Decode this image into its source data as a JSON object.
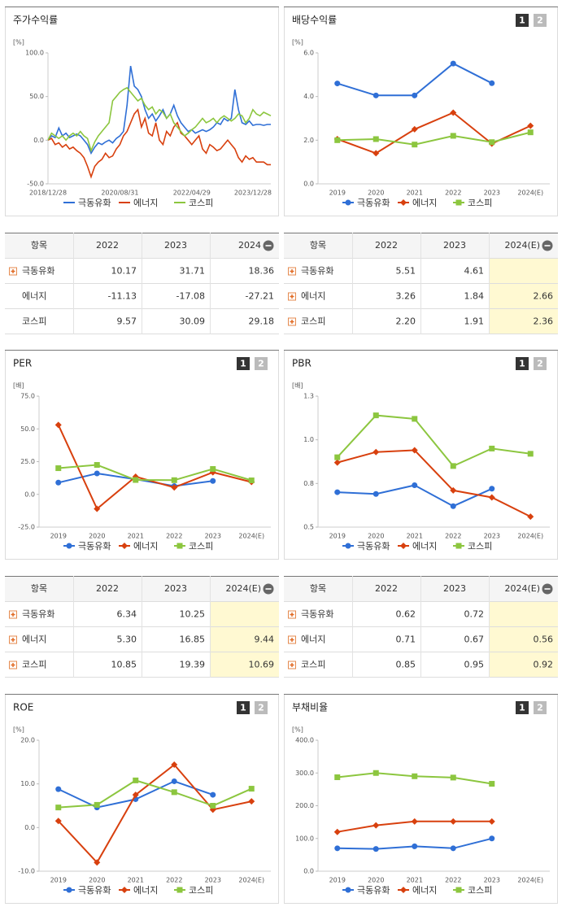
{
  "chart_data": [
    {
      "type": "time-line",
      "title": "주가수익률",
      "yunit": "[%]",
      "categories": [
        "2018/12/28",
        null,
        null,
        null,
        null,
        null,
        null,
        null,
        null,
        null,
        null,
        null,
        null,
        null,
        null,
        null,
        null,
        null,
        null,
        null,
        "2020/08/31",
        null,
        null,
        null,
        null,
        null,
        null,
        null,
        null,
        null,
        null,
        null,
        null,
        null,
        null,
        null,
        null,
        null,
        null,
        null,
        "2022/04/29",
        null,
        null,
        null,
        null,
        null,
        null,
        null,
        null,
        null,
        null,
        null,
        null,
        null,
        null,
        null,
        null,
        "2023/12/28",
        null,
        null,
        null,
        null,
        null
      ],
      "ylim": [
        -50,
        100
      ],
      "yticks": [
        {
          "value": -50,
          "label": "-50.0"
        },
        {
          "value": 0,
          "label": "0.0"
        },
        {
          "value": 50,
          "label": "50.0"
        },
        {
          "value": 100,
          "label": "100.0"
        }
      ],
      "series": [
        {
          "name": "극동유화",
          "color": "#2f6fd6",
          "values": [
            0,
            5,
            3,
            14,
            5,
            8,
            3,
            5,
            7,
            5,
            0,
            -5,
            -15,
            -8,
            -3,
            -5,
            -2,
            0,
            -3,
            2,
            5,
            10,
            40,
            85,
            62,
            58,
            50,
            35,
            25,
            30,
            22,
            28,
            35,
            25,
            30,
            40,
            28,
            20,
            15,
            10,
            12,
            8,
            10,
            12,
            10,
            12,
            15,
            20,
            18,
            25,
            22,
            25,
            58,
            35,
            20,
            18,
            22,
            17,
            18,
            18,
            17,
            18,
            18
          ]
        },
        {
          "name": "에너지",
          "color": "#d8400e",
          "values": [
            0,
            2,
            -5,
            -3,
            -8,
            -5,
            -10,
            -8,
            -12,
            -15,
            -20,
            -30,
            -42,
            -30,
            -25,
            -22,
            -15,
            -20,
            -18,
            -10,
            -5,
            5,
            10,
            20,
            30,
            35,
            15,
            25,
            8,
            5,
            20,
            0,
            -5,
            10,
            5,
            15,
            20,
            8,
            5,
            0,
            -5,
            0,
            5,
            -10,
            -15,
            -5,
            -8,
            -12,
            -10,
            -5,
            0,
            -5,
            -10,
            -20,
            -25,
            -18,
            -22,
            -20,
            -25,
            -25,
            -25,
            -28,
            -28
          ]
        },
        {
          "name": "코스피",
          "color": "#8cc63f",
          "values": [
            0,
            8,
            5,
            2,
            5,
            0,
            5,
            8,
            5,
            10,
            5,
            2,
            -12,
            -2,
            5,
            10,
            15,
            20,
            45,
            50,
            55,
            58,
            60,
            55,
            50,
            45,
            48,
            40,
            35,
            38,
            30,
            35,
            32,
            25,
            30,
            20,
            15,
            10,
            5,
            8,
            12,
            15,
            20,
            25,
            20,
            22,
            25,
            20,
            25,
            28,
            25,
            22,
            25,
            30,
            28,
            20,
            25,
            35,
            30,
            28,
            32,
            30,
            28
          ]
        }
      ]
    },
    {
      "type": "category-line",
      "title": "배당수익률",
      "yunit": "[%]",
      "buttons": [
        "1",
        "2"
      ],
      "categories": [
        "2019",
        "2020",
        "2021",
        "2022",
        "2023",
        "2024(E)"
      ],
      "ylim": [
        0,
        6
      ],
      "yticks": [
        {
          "value": 0,
          "label": "0.0"
        },
        {
          "value": 2,
          "label": "2.0"
        },
        {
          "value": 4,
          "label": "4.0"
        },
        {
          "value": 6,
          "label": "6.0"
        }
      ],
      "series": [
        {
          "name": "극동유화",
          "color": "#2f6fd6",
          "marker": "circle",
          "values": [
            4.6,
            4.05,
            4.05,
            5.51,
            4.61,
            null
          ]
        },
        {
          "name": "에너지",
          "color": "#d8400e",
          "marker": "diamond",
          "values": [
            2.05,
            1.4,
            2.5,
            3.26,
            1.84,
            2.66
          ]
        },
        {
          "name": "코스피",
          "color": "#8cc63f",
          "marker": "square",
          "values": [
            2.0,
            2.05,
            1.8,
            2.2,
            1.91,
            2.36
          ]
        }
      ]
    },
    {
      "type": "category-line",
      "title": "PER",
      "yunit": "[배]",
      "buttons": [
        "1",
        "2"
      ],
      "categories": [
        "2019",
        "2020",
        "2021",
        "2022",
        "2023",
        "2024(E)"
      ],
      "ylim": [
        -25,
        75
      ],
      "yticks": [
        {
          "value": -25,
          "label": "-25.0"
        },
        {
          "value": 0,
          "label": "0.0"
        },
        {
          "value": 25,
          "label": "25.0"
        },
        {
          "value": 50,
          "label": "50.0"
        },
        {
          "value": 75,
          "label": "75.0"
        }
      ],
      "series": [
        {
          "name": "극동유화",
          "color": "#2f6fd6",
          "marker": "circle",
          "values": [
            9,
            16,
            11.5,
            6.34,
            10.25,
            null
          ]
        },
        {
          "name": "에너지",
          "color": "#d8400e",
          "marker": "diamond",
          "values": [
            53,
            -11,
            13.5,
            5.3,
            16.85,
            9.44
          ]
        },
        {
          "name": "코스피",
          "color": "#8cc63f",
          "marker": "square",
          "values": [
            20,
            22.5,
            11,
            10.85,
            19.39,
            10.69
          ]
        }
      ]
    },
    {
      "type": "category-line",
      "title": "PBR",
      "yunit": "[배]",
      "buttons": [
        "1",
        "2"
      ],
      "categories": [
        "2019",
        "2020",
        "2021",
        "2022",
        "2023",
        "2024(E)"
      ],
      "ylim": [
        0.5,
        1.25
      ],
      "yticks": [
        {
          "value": 0.5,
          "label": "0.5"
        },
        {
          "value": 0.75,
          "label": "0.8"
        },
        {
          "value": 1.0,
          "label": "1.0"
        },
        {
          "value": 1.25,
          "label": "1.3"
        }
      ],
      "series": [
        {
          "name": "극동유화",
          "color": "#2f6fd6",
          "marker": "circle",
          "values": [
            0.7,
            0.69,
            0.74,
            0.62,
            0.72,
            null
          ]
        },
        {
          "name": "에너지",
          "color": "#d8400e",
          "marker": "diamond",
          "values": [
            0.87,
            0.93,
            0.94,
            0.71,
            0.67,
            0.56
          ]
        },
        {
          "name": "코스피",
          "color": "#8cc63f",
          "marker": "square",
          "values": [
            0.9,
            1.14,
            1.12,
            0.85,
            0.95,
            0.92
          ]
        }
      ]
    },
    {
      "type": "category-line",
      "title": "ROE",
      "yunit": "[%]",
      "buttons": [
        "1",
        "2"
      ],
      "categories": [
        "2019",
        "2020",
        "2021",
        "2022",
        "2023",
        "2024(E)"
      ],
      "ylim": [
        -10,
        20
      ],
      "yticks": [
        {
          "value": -10,
          "label": "-10.0"
        },
        {
          "value": 0,
          "label": "0.0"
        },
        {
          "value": 10,
          "label": "10.0"
        },
        {
          "value": 20,
          "label": "20.0"
        }
      ],
      "series": [
        {
          "name": "극동유화",
          "color": "#2f6fd6",
          "marker": "circle",
          "values": [
            8.8,
            4.6,
            6.5,
            10.6,
            7.5,
            null
          ]
        },
        {
          "name": "에너지",
          "color": "#d8400e",
          "marker": "diamond",
          "values": [
            1.5,
            -8,
            7.5,
            14.4,
            4.1,
            6.0
          ]
        },
        {
          "name": "코스피",
          "color": "#8cc63f",
          "marker": "square",
          "values": [
            4.6,
            5.2,
            10.8,
            8.1,
            5.0,
            8.9
          ]
        }
      ]
    },
    {
      "type": "category-line",
      "title": "부채비율",
      "yunit": "[%]",
      "buttons": [
        "1",
        "2"
      ],
      "categories": [
        "2019",
        "2020",
        "2021",
        "2022",
        "2023",
        "2024(E)"
      ],
      "ylim": [
        0,
        400
      ],
      "yticks": [
        {
          "value": 0,
          "label": "0.0"
        },
        {
          "value": 100,
          "label": "100.0"
        },
        {
          "value": 200,
          "label": "200.0"
        },
        {
          "value": 300,
          "label": "300.0"
        },
        {
          "value": 400,
          "label": "400.0"
        }
      ],
      "series": [
        {
          "name": "극동유화",
          "color": "#2f6fd6",
          "marker": "circle",
          "values": [
            70,
            68,
            76,
            70,
            100,
            null
          ]
        },
        {
          "name": "에너지",
          "color": "#d8400e",
          "marker": "diamond",
          "values": [
            120,
            140,
            152,
            152,
            152,
            null
          ]
        },
        {
          "name": "코스피",
          "color": "#8cc63f",
          "marker": "square",
          "values": [
            287,
            300,
            290,
            286,
            267,
            null
          ]
        }
      ]
    }
  ],
  "tables": [
    {
      "columns": [
        "항목",
        "2022",
        "2023",
        "2024"
      ],
      "icons": [
        true,
        false,
        false
      ],
      "highlight": false,
      "rows": [
        [
          "극동유화",
          "10.17",
          "31.71",
          "18.36"
        ],
        [
          "에너지",
          "-11.13",
          "-17.08",
          "-27.21"
        ],
        [
          "코스피",
          "9.57",
          "30.09",
          "29.18"
        ]
      ]
    },
    {
      "columns": [
        "항목",
        "2022",
        "2023",
        "2024(E)"
      ],
      "icons": [
        true,
        true,
        true
      ],
      "highlight": true,
      "rows": [
        [
          "극동유화",
          "5.51",
          "4.61"
        ],
        [
          "에너지",
          "3.26",
          "1.84",
          "2.66"
        ],
        [
          "코스피",
          "2.20",
          "1.91",
          "2.36"
        ]
      ]
    },
    {
      "columns": [
        "항목",
        "2022",
        "2023",
        "2024(E)"
      ],
      "icons": [
        true,
        true,
        true
      ],
      "highlight": true,
      "rows": [
        [
          "극동유화",
          "6.34",
          "10.25"
        ],
        [
          "에너지",
          "5.30",
          "16.85",
          "9.44"
        ],
        [
          "코스피",
          "10.85",
          "19.39",
          "10.69"
        ]
      ]
    },
    {
      "columns": [
        "항목",
        "2022",
        "2023",
        "2024(E)"
      ],
      "icons": [
        true,
        true,
        true
      ],
      "highlight": true,
      "rows": [
        [
          "극동유화",
          "0.62",
          "0.72"
        ],
        [
          "에너지",
          "0.71",
          "0.67",
          "0.56"
        ],
        [
          "코스피",
          "0.85",
          "0.95",
          "0.92"
        ]
      ]
    }
  ]
}
